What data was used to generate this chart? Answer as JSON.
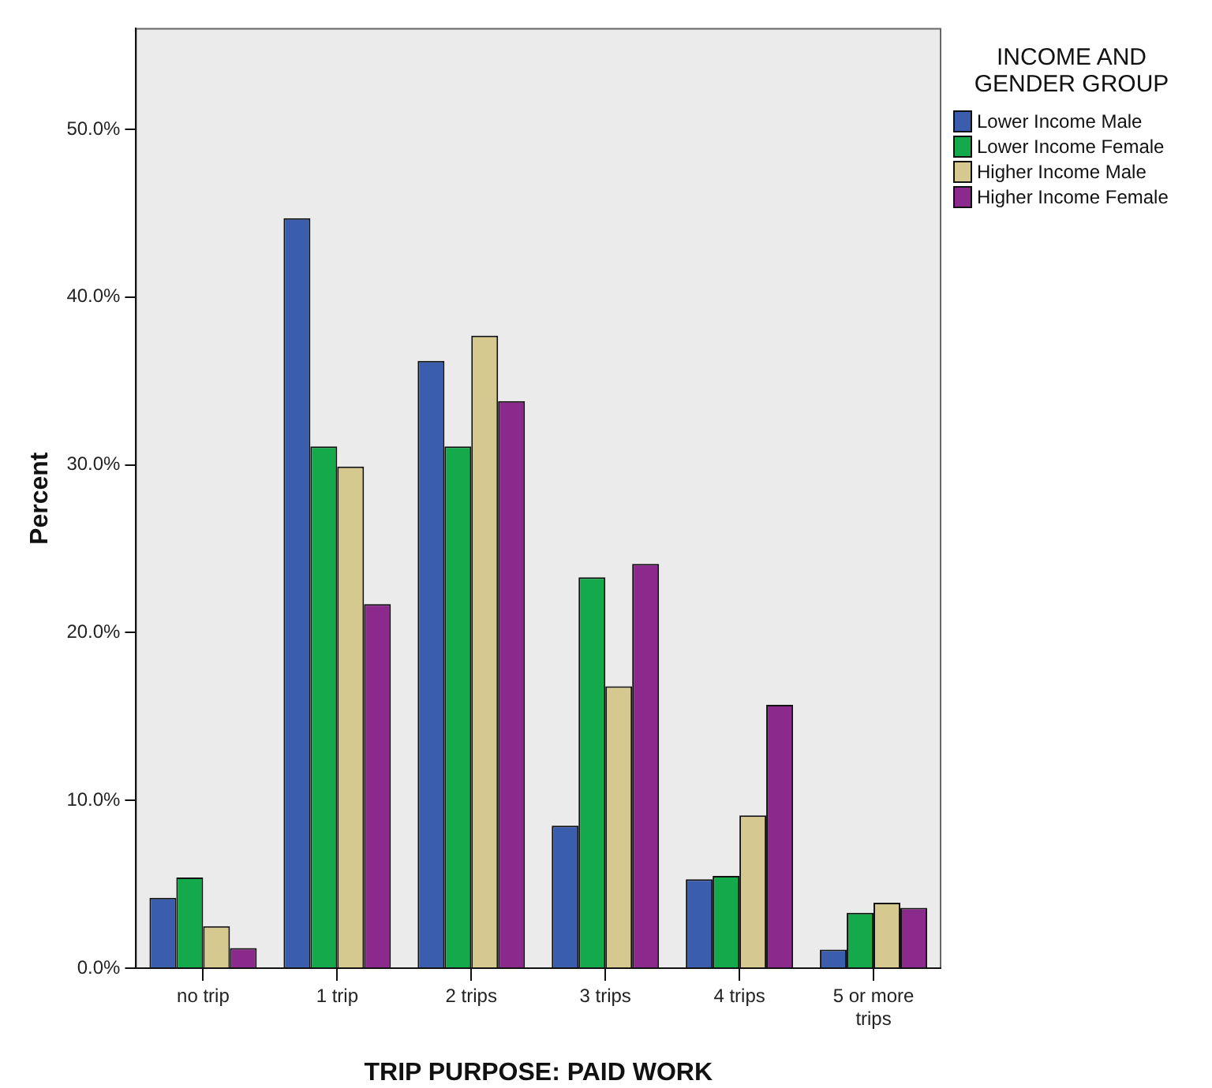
{
  "chart_data": {
    "type": "bar",
    "xlabel": "TRIP PURPOSE: PAID WORK",
    "ylabel": "Percent",
    "legend_title": "INCOME AND GENDER GROUP",
    "legend": "top right",
    "grid": false,
    "categories": [
      "no trip",
      "1 trip",
      "2 trips",
      "3 trips",
      "4 trips",
      "5 or more trips"
    ],
    "series": [
      {
        "name": "Lower Income Male",
        "color": "#3a5dae",
        "values": [
          4.2,
          44.7,
          36.2,
          8.5,
          5.3,
          1.1
        ]
      },
      {
        "name": "Lower Income Female",
        "color": "#14a94b",
        "values": [
          5.4,
          31.1,
          31.1,
          23.3,
          5.5,
          3.3
        ]
      },
      {
        "name": "Higher Income Male",
        "color": "#d6c98f",
        "values": [
          2.5,
          29.9,
          37.7,
          16.8,
          9.1,
          3.9
        ]
      },
      {
        "name": "Higher Income Female",
        "color": "#8b2a8c",
        "values": [
          1.2,
          21.7,
          33.8,
          24.1,
          15.7,
          3.6
        ]
      }
    ],
    "ylim": [
      0,
      56
    ],
    "yticks": [
      {
        "value": 0,
        "label": "0.0%"
      },
      {
        "value": 10,
        "label": "10.0%"
      },
      {
        "value": 20,
        "label": "20.0%"
      },
      {
        "value": 30,
        "label": "30.0%"
      },
      {
        "value": 40,
        "label": "40.0%"
      },
      {
        "value": 50,
        "label": "50.0%"
      }
    ]
  }
}
